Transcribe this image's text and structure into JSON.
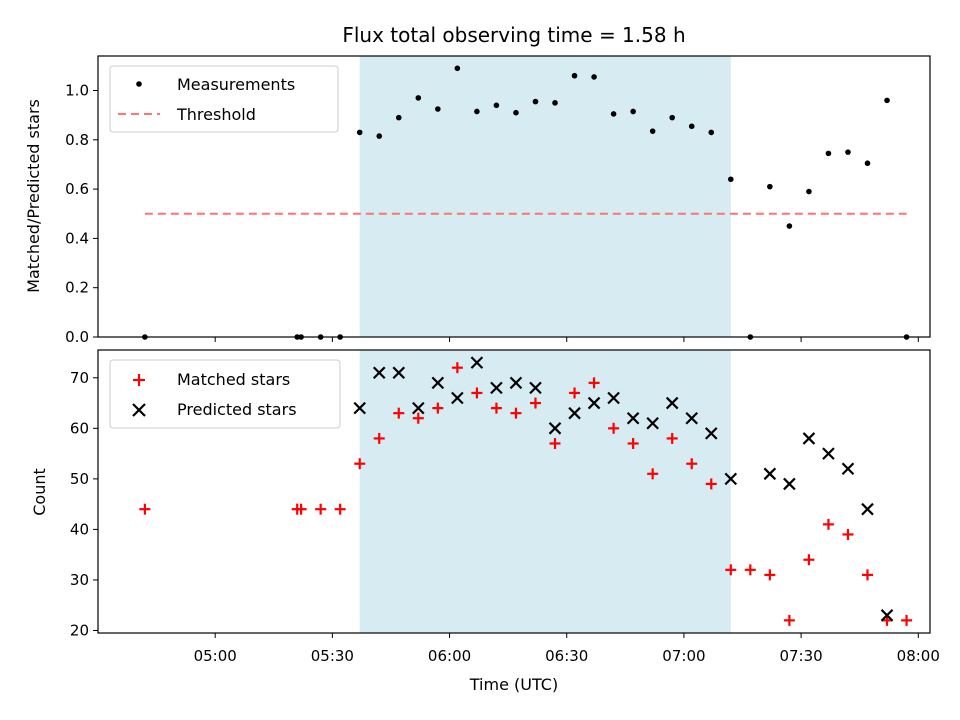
{
  "chart_data": [
    {
      "type": "scatter",
      "title": "Flux total observing time = 1.58 h",
      "ylabel": "Matched/Predicted stars",
      "ylim": [
        0,
        1.14
      ],
      "yticks": [
        "0.0",
        "0.2",
        "0.4",
        "0.6",
        "0.8",
        "1.0"
      ],
      "xlim": [
        "04:30",
        "08:03"
      ],
      "shaded_region": {
        "x": [
          "05:37",
          "07:12"
        ],
        "color": "#add8e6"
      },
      "legend": {
        "placement": "top-left"
      },
      "series": [
        {
          "name": "Measurements",
          "marker": "dot",
          "color": "#000000",
          "x": [
            "04:42",
            "05:21",
            "05:22",
            "05:27",
            "05:32",
            "05:37",
            "05:42",
            "05:47",
            "05:52",
            "05:57",
            "06:02",
            "06:07",
            "06:12",
            "06:17",
            "06:22",
            "06:27",
            "06:32",
            "06:37",
            "06:42",
            "06:47",
            "06:52",
            "06:57",
            "07:02",
            "07:07",
            "07:12",
            "07:17",
            "07:22",
            "07:27",
            "07:32",
            "07:37",
            "07:42",
            "07:47",
            "07:52",
            "07:57"
          ],
          "y": [
            0.0,
            0.0,
            0.0,
            0.0,
            0.0,
            0.83,
            0.815,
            0.89,
            0.97,
            0.925,
            1.09,
            0.915,
            0.94,
            0.91,
            0.955,
            0.95,
            1.06,
            1.055,
            0.905,
            0.915,
            0.835,
            0.89,
            0.855,
            0.83,
            0.64,
            0.0,
            0.61,
            0.45,
            0.59,
            0.745,
            0.75,
            0.705,
            0.96,
            0.0
          ]
        },
        {
          "name": "Threshold",
          "type": "line",
          "style": "dashed",
          "color": "#ff7373",
          "x": [
            "04:42",
            "07:57"
          ],
          "y": [
            0.5,
            0.5
          ]
        }
      ]
    },
    {
      "type": "scatter",
      "xlabel": "Time (UTC)",
      "ylabel": "Count",
      "ylim": [
        19.5,
        75.5
      ],
      "yticks": [
        "20",
        "30",
        "40",
        "50",
        "60",
        "70"
      ],
      "xlim": [
        "04:30",
        "08:03"
      ],
      "xticks": [
        "05:00",
        "05:30",
        "06:00",
        "06:30",
        "07:00",
        "07:30",
        "08:00"
      ],
      "shaded_region": {
        "x": [
          "05:37",
          "07:12"
        ],
        "color": "#add8e6"
      },
      "legend": {
        "placement": "top-left"
      },
      "series": [
        {
          "name": "Matched stars",
          "marker": "plus",
          "color": "#ff0000",
          "x": [
            "04:42",
            "05:21",
            "05:22",
            "05:27",
            "05:32",
            "05:37",
            "05:42",
            "05:47",
            "05:52",
            "05:57",
            "06:02",
            "06:07",
            "06:12",
            "06:17",
            "06:22",
            "06:27",
            "06:32",
            "06:37",
            "06:42",
            "06:47",
            "06:52",
            "06:57",
            "07:02",
            "07:07",
            "07:12",
            "07:17",
            "07:22",
            "07:27",
            "07:32",
            "07:37",
            "07:42",
            "07:47",
            "07:52",
            "07:57"
          ],
          "y": [
            44,
            44,
            44,
            44,
            44,
            53,
            58,
            63,
            62,
            64,
            72,
            67,
            64,
            63,
            65,
            57,
            67,
            69,
            60,
            57,
            51,
            58,
            53,
            49,
            32,
            32,
            31,
            22,
            34,
            41,
            39,
            31,
            22,
            22
          ]
        },
        {
          "name": "Predicted stars",
          "marker": "x",
          "color": "#000000",
          "x": [
            "05:37",
            "05:42",
            "05:47",
            "05:52",
            "05:57",
            "06:02",
            "06:07",
            "06:12",
            "06:17",
            "06:22",
            "06:27",
            "06:32",
            "06:37",
            "06:42",
            "06:47",
            "06:52",
            "06:57",
            "07:02",
            "07:07",
            "07:12",
            "07:22",
            "07:27",
            "07:32",
            "07:37",
            "07:42",
            "07:47",
            "07:52"
          ],
          "y": [
            64,
            71,
            71,
            64,
            69,
            66,
            73,
            68,
            69,
            68,
            60,
            63,
            65,
            66,
            62,
            61,
            65,
            62,
            59,
            50,
            51,
            49,
            58,
            55,
            52,
            44,
            23
          ]
        }
      ]
    }
  ]
}
